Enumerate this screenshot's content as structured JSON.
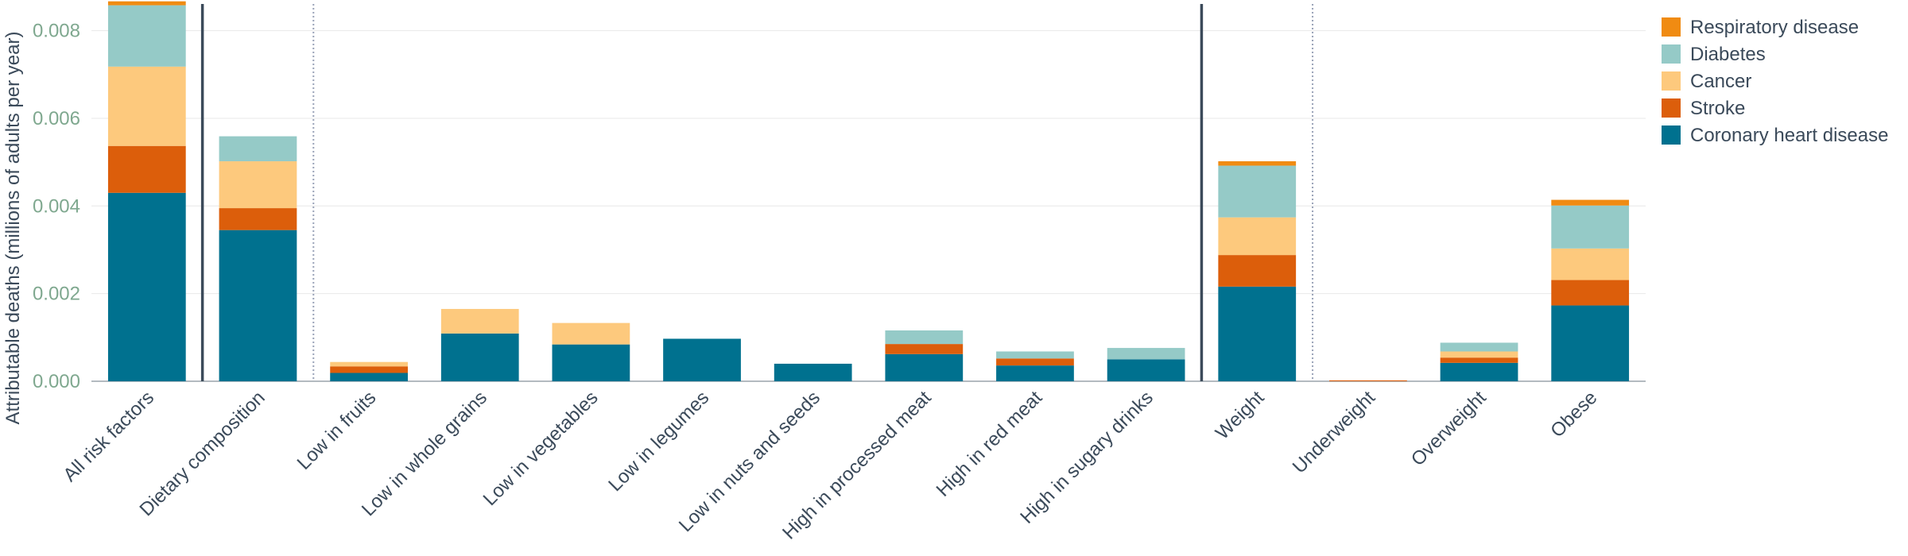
{
  "chart_data": {
    "type": "bar",
    "stacked": true,
    "ylabel": "Attributable deaths (millions of adults per year)",
    "xlabel": "",
    "ylim": [
      0,
      0.0087
    ],
    "yticks": [
      0.0,
      0.002,
      0.004,
      0.006,
      0.008
    ],
    "ytick_labels": [
      "0.000",
      "0.002",
      "0.004",
      "0.006",
      "0.008"
    ],
    "grid": true,
    "legend_position": "top-right",
    "categories": [
      "All risk factors",
      "Dietary composition",
      "Low in fruits",
      "Low in whole grains",
      "Low in vegetables",
      "Low in legumes",
      "Low in nuts and seeds",
      "High in processed meat",
      "High in red meat",
      "High in sugary drinks",
      "Weight",
      "Underweight",
      "Overweight",
      "Obese"
    ],
    "series": [
      {
        "name": "Coronary heart disease",
        "color": "#00718f",
        "values": [
          0.0043,
          0.00345,
          0.00019,
          0.00109,
          0.00084,
          0.00097,
          0.0004,
          0.00062,
          0.00036,
          0.0005,
          0.00216,
          0.0,
          0.00042,
          0.00173
        ]
      },
      {
        "name": "Stroke",
        "color": "#dc5e0b",
        "values": [
          0.00107,
          0.0005,
          0.00015,
          0.0,
          0.0,
          0.0,
          0.0,
          0.00023,
          0.00016,
          0.0,
          0.00072,
          2e-05,
          0.00012,
          0.00058
        ]
      },
      {
        "name": "Cancer",
        "color": "#fdc97d",
        "values": [
          0.00181,
          0.00107,
          0.0001,
          0.00056,
          0.00049,
          0.0,
          0.0,
          0.0,
          0.0,
          0.0,
          0.00086,
          0.0,
          0.00014,
          0.00072
        ]
      },
      {
        "name": "Diabetes",
        "color": "#95cac7",
        "values": [
          0.0014,
          0.00057,
          0.0,
          0.0,
          0.0,
          0.0,
          0.0,
          0.00031,
          0.00016,
          0.00026,
          0.00118,
          0.0,
          0.0002,
          0.00098
        ]
      },
      {
        "name": "Respiratory disease",
        "color": "#f08b12",
        "values": [
          9e-05,
          0.0,
          0.0,
          0.0,
          0.0,
          0.0,
          0.0,
          0.0,
          0.0,
          0.0,
          0.0001,
          0.0,
          0.0,
          0.00013
        ]
      }
    ],
    "legend_order": [
      "Respiratory disease",
      "Diabetes",
      "Cancer",
      "Stroke",
      "Coronary heart disease"
    ],
    "solid_separators_after": [
      "All risk factors",
      "High in sugary drinks"
    ],
    "dotted_separators_after": [
      "Dietary composition",
      "Weight"
    ]
  }
}
